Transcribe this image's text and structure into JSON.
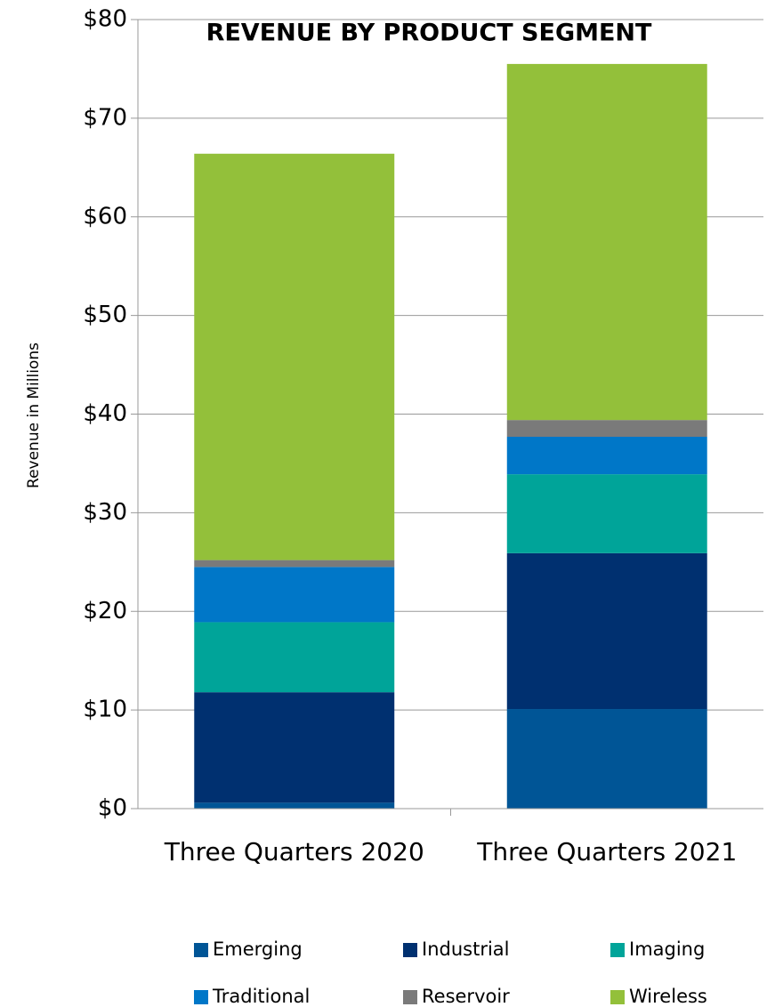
{
  "chart_data": {
    "type": "stacked_bar",
    "title": "REVENUE BY PRODUCT SEGMENT",
    "y_label": "Revenue in Millions",
    "categories": [
      "Three Quarters 2020",
      "Three Quarters 2021"
    ],
    "series": [
      {
        "name": "Emerging",
        "color": "#005596",
        "values": [
          0.6,
          10.1
        ]
      },
      {
        "name": "Industrial",
        "color": "#003070",
        "values": [
          11.2,
          15.8
        ]
      },
      {
        "name": "Imaging",
        "color": "#00a499",
        "values": [
          7.1,
          8.0
        ]
      },
      {
        "name": "Traditional",
        "color": "#0077c8",
        "values": [
          5.6,
          3.8
        ]
      },
      {
        "name": "Reservoir",
        "color": "#7a7a7a",
        "values": [
          0.7,
          1.7
        ]
      },
      {
        "name": "Wireless",
        "color": "#93c03a",
        "values": [
          41.2,
          36.1
        ]
      }
    ],
    "ylim": [
      0,
      80
    ],
    "yticks": [
      {
        "value": 0,
        "label": "$0"
      },
      {
        "value": 10,
        "label": "$10"
      },
      {
        "value": 20,
        "label": "$20"
      },
      {
        "value": 30,
        "label": "$30"
      },
      {
        "value": 40,
        "label": "$40"
      },
      {
        "value": 50,
        "label": "$50"
      },
      {
        "value": 60,
        "label": "$60"
      },
      {
        "value": 70,
        "label": "$70"
      },
      {
        "value": 80,
        "label": "$80"
      }
    ],
    "grid": true,
    "legend": "bottom"
  }
}
